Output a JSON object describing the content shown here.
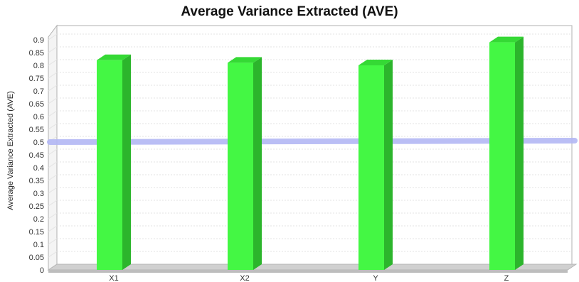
{
  "chart_data": {
    "type": "bar",
    "title": "Average Variance Extracted (AVE)",
    "ylabel": "Average Variance Extracted (AVE)",
    "xlabel": "",
    "categories": [
      "X1",
      "X2",
      "Y",
      "Z"
    ],
    "values": [
      0.82,
      0.81,
      0.8,
      0.89
    ],
    "ylim": [
      0,
      0.9
    ],
    "yticks": [
      "0",
      "0.05",
      "0.1",
      "0.15",
      "0.2",
      "0.25",
      "0.3",
      "0.35",
      "0.4",
      "0.45",
      "0.5",
      "0.55",
      "0.6",
      "0.65",
      "0.7",
      "0.75",
      "0.8",
      "0.85",
      "0.9"
    ],
    "threshold": 0.5,
    "grid": true,
    "legend": "none",
    "colors": {
      "bar_front": "#44f744",
      "bar_side": "#2cb52c",
      "bar_top": "#35d935",
      "threshold": "#b3b8f5",
      "grid": "#e3e3e3",
      "axis": "#b0b0b0"
    }
  }
}
